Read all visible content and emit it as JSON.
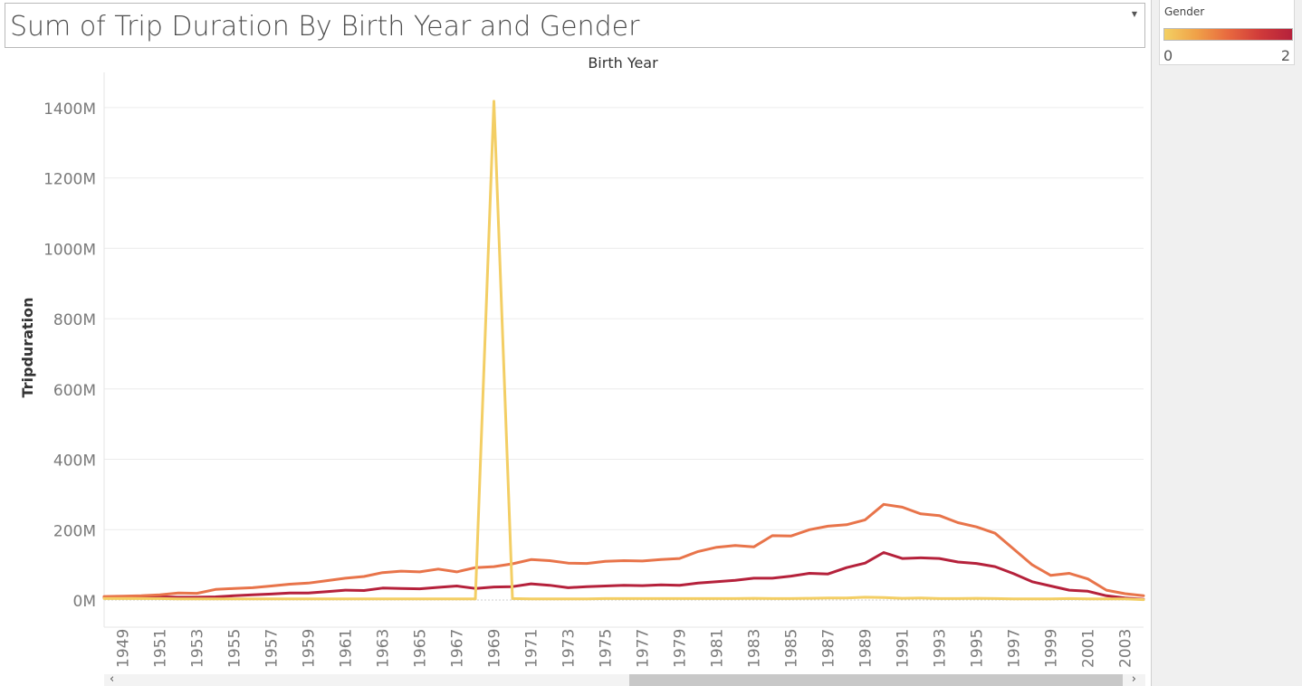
{
  "title": "Sum of Trip Duration By Birth Year and Gender",
  "legend": {
    "title": "Gender",
    "min_label": "0",
    "max_label": "2",
    "gradient_colors": [
      "#f3d063",
      "#f0a148",
      "#e8693f",
      "#d03a3a",
      "#b5213b"
    ]
  },
  "controls": {
    "dropdown_icon": "caret-down-icon",
    "scroll_left": "‹",
    "scroll_right": "›"
  },
  "chart_data": {
    "type": "line",
    "title": "Birth Year",
    "xlabel": "Birth Year",
    "ylabel": "Tripduration",
    "ylim": [
      0,
      1400
    ],
    "y_unit": "M",
    "yticks": [
      0,
      200,
      400,
      600,
      800,
      1000,
      1200,
      1400
    ],
    "ytick_labels": [
      "0M",
      "200M",
      "400M",
      "600M",
      "800M",
      "1000M",
      "1200M",
      "1400M"
    ],
    "xlim": [
      1948,
      2004
    ],
    "xtick_labels": [
      "1949",
      "1951",
      "1953",
      "1955",
      "1957",
      "1959",
      "1961",
      "1963",
      "1965",
      "1967",
      "1969",
      "1971",
      "1973",
      "1975",
      "1977",
      "1979",
      "1981",
      "1983",
      "1985",
      "1987",
      "1989",
      "1991",
      "1993",
      "1995",
      "1997",
      "1999",
      "2001",
      "2003"
    ],
    "grid": true,
    "legend_position": "top-right",
    "x": [
      1948,
      1949,
      1950,
      1951,
      1952,
      1953,
      1954,
      1955,
      1956,
      1957,
      1958,
      1959,
      1960,
      1961,
      1962,
      1963,
      1964,
      1965,
      1966,
      1967,
      1968,
      1969,
      1970,
      1971,
      1972,
      1973,
      1974,
      1975,
      1976,
      1977,
      1978,
      1979,
      1980,
      1981,
      1982,
      1983,
      1984,
      1985,
      1986,
      1987,
      1988,
      1989,
      1990,
      1991,
      1992,
      1993,
      1994,
      1995,
      1996,
      1997,
      1998,
      1999,
      2000,
      2001,
      2002,
      2003,
      2004
    ],
    "series": [
      {
        "name": "0",
        "color": "#f3ce64",
        "values": [
          4,
          4,
          4,
          4,
          3,
          3,
          3,
          3,
          3,
          3,
          3,
          3,
          3,
          3,
          3,
          3,
          3,
          3,
          3,
          3,
          3,
          1418,
          4,
          3,
          3,
          3,
          3,
          4,
          4,
          4,
          4,
          4,
          4,
          4,
          4,
          5,
          4,
          4,
          5,
          6,
          6,
          8,
          7,
          5,
          6,
          4,
          4,
          5,
          4,
          3,
          3,
          3,
          4,
          3,
          3,
          3,
          1
        ]
      },
      {
        "name": "1",
        "color": "#e8744a",
        "values": [
          10,
          11,
          12,
          15,
          20,
          19,
          30,
          33,
          35,
          40,
          45,
          48,
          55,
          62,
          67,
          78,
          82,
          80,
          88,
          80,
          92,
          95,
          103,
          115,
          112,
          105,
          104,
          110,
          112,
          111,
          115,
          118,
          138,
          150,
          155,
          151,
          183,
          182,
          200,
          210,
          214,
          228,
          272,
          264,
          245,
          240,
          220,
          208,
          190,
          145,
          100,
          70,
          76,
          60,
          28,
          18,
          12
        ]
      },
      {
        "name": "2",
        "color": "#b5213b",
        "values": [
          8,
          8,
          8,
          9,
          8,
          8,
          9,
          12,
          15,
          17,
          20,
          20,
          24,
          28,
          27,
          34,
          33,
          32,
          36,
          40,
          33,
          37,
          38,
          46,
          42,
          35,
          38,
          40,
          42,
          41,
          43,
          42,
          48,
          52,
          56,
          62,
          62,
          68,
          76,
          74,
          92,
          105,
          135,
          118,
          120,
          118,
          108,
          104,
          95,
          75,
          52,
          40,
          28,
          25,
          12,
          6,
          2
        ]
      }
    ]
  }
}
